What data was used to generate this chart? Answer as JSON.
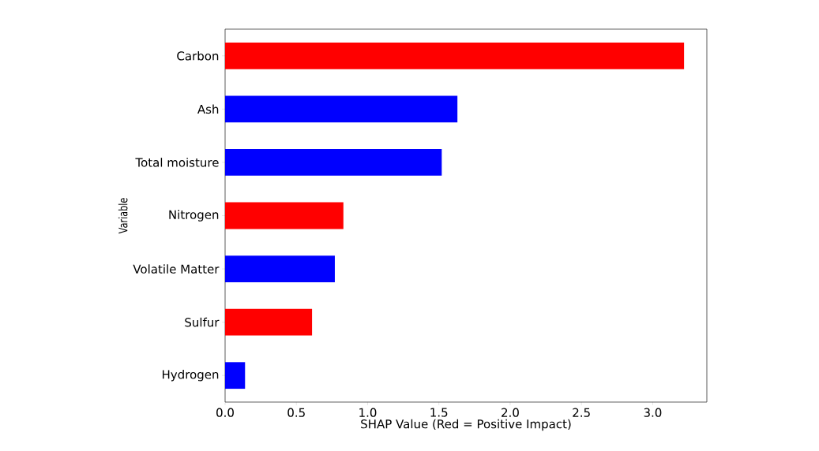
{
  "chart_data": {
    "type": "bar",
    "orientation": "horizontal",
    "categories": [
      "Carbon",
      "Ash",
      "Total moisture",
      "Nitrogen",
      "Volatile Matter",
      "Sulfur",
      "Hydrogen"
    ],
    "values": [
      3.22,
      1.63,
      1.52,
      0.83,
      0.77,
      0.61,
      0.14
    ],
    "colors": [
      "#ff0000",
      "#0000ff",
      "#0000ff",
      "#ff0000",
      "#0000ff",
      "#ff0000",
      "#0000ff"
    ],
    "xlim": [
      0,
      3.38
    ],
    "xticks": [
      {
        "value": 0,
        "label": "0.0"
      },
      0.5,
      {
        "value": 1,
        "label": "1.0"
      },
      1.5,
      {
        "value": 2,
        "label": "2.0"
      },
      2.5,
      {
        "value": 3,
        "label": "3.0"
      }
    ],
    "xlabel": "SHAP Value (Red = Positive Impact)",
    "ylabel": "Variable"
  }
}
